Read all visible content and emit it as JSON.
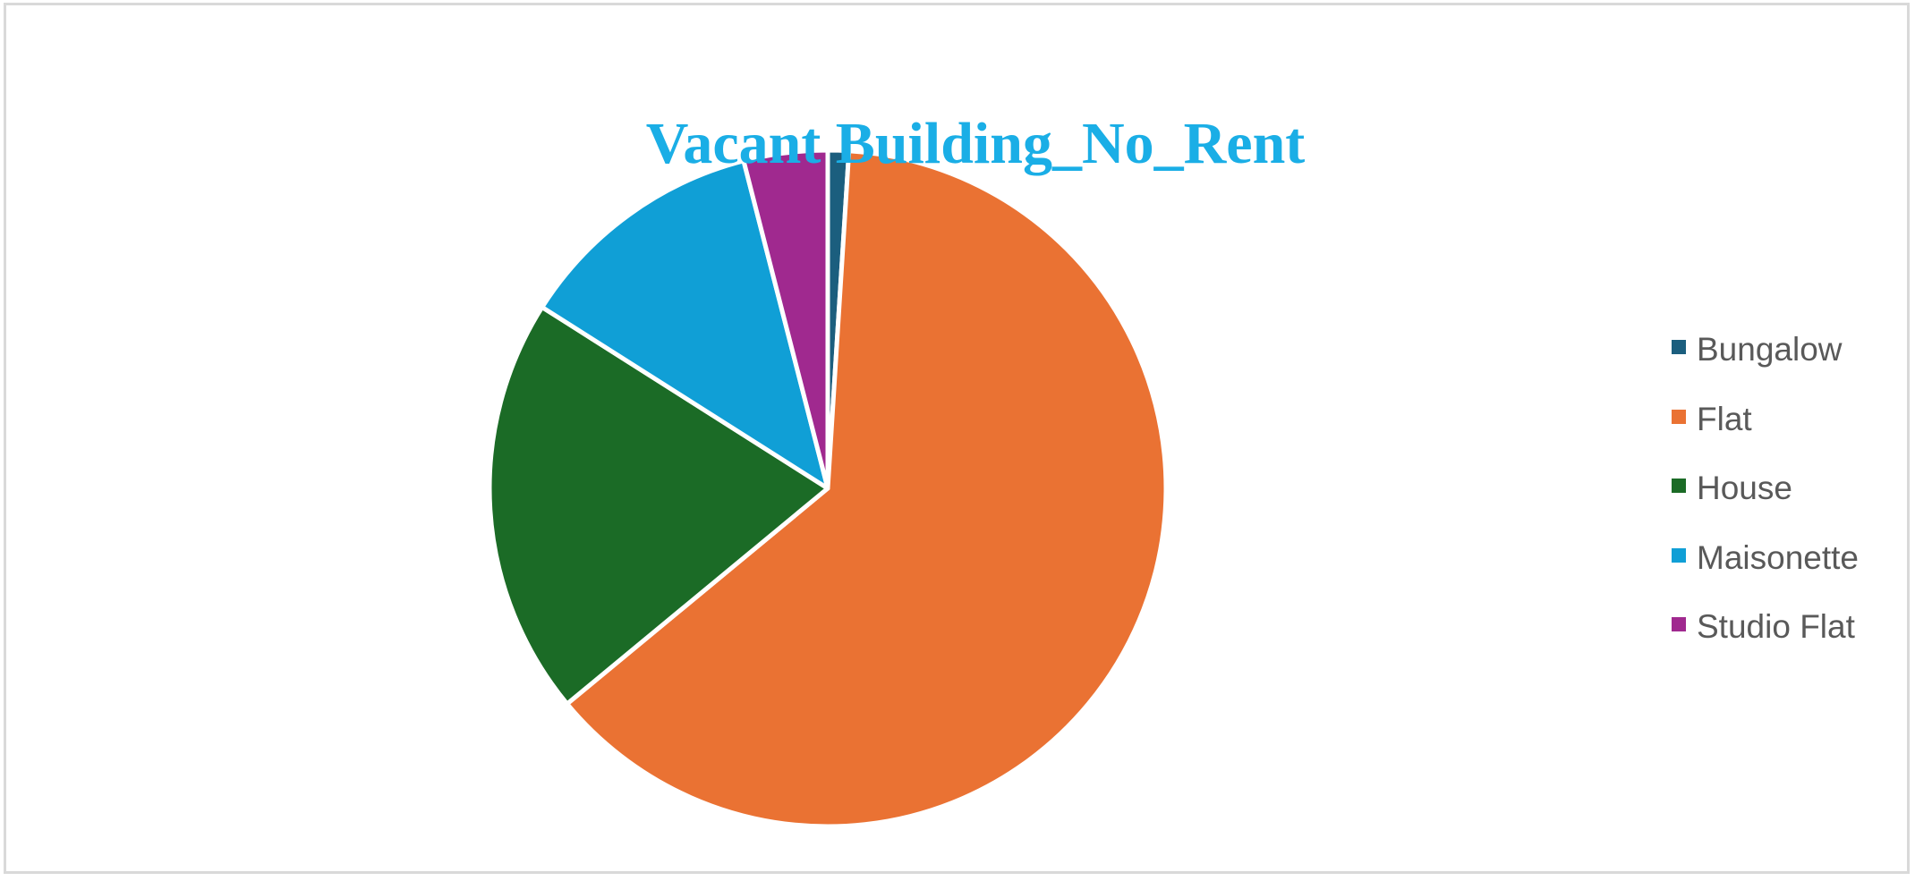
{
  "chart_data": {
    "type": "pie",
    "title": "Vacant Building_No_Rent",
    "legend_position": "right",
    "categories": [
      "Bungalow",
      "Flat",
      "House",
      "Maisonette",
      "Studio Flat"
    ],
    "values": [
      1.0,
      63.0,
      20.0,
      12.0,
      4.0
    ],
    "colors": [
      "#1B5E7E",
      "#EA7233",
      "#1B6B26",
      "#109FD6",
      "#A0298F"
    ],
    "slice_icon": "pie-slice"
  }
}
